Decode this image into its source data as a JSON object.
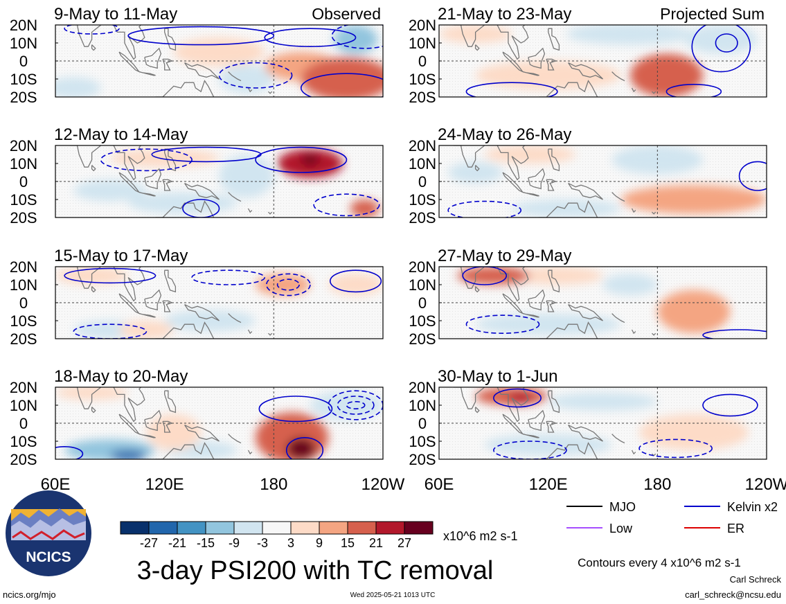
{
  "chart_data": {
    "type": "heatmap",
    "title": "3-day PSI200 with TC removal",
    "variable": "PSI200",
    "units": "x10^6 m2 s-1",
    "column_labels": [
      "Observed",
      "Projected Sum"
    ],
    "x_ticks": [
      "60E",
      "120E",
      "180",
      "120W"
    ],
    "x_range_deg_east": [
      60,
      240
    ],
    "y_ticks": [
      "20N",
      "10N",
      "0",
      "10S",
      "20S"
    ],
    "y_range_deg": [
      -20,
      20
    ],
    "reference_lines": {
      "equator": 0,
      "dateline": 180
    },
    "colorbar": {
      "ticks": [
        "-27",
        "-21",
        "-15",
        "-9",
        "-3",
        "3",
        "9",
        "15",
        "21",
        "27"
      ],
      "colors": [
        "#08306b",
        "#2166ac",
        "#4393c3",
        "#92c5de",
        "#d1e5f0",
        "#f7f7f7",
        "#fddbc7",
        "#f4a582",
        "#d6604d",
        "#b2182b",
        "#67001f"
      ]
    },
    "contour_interval": "Contours every 4 x10^6 m2 s-1",
    "contour_series": [
      {
        "name": "MJO",
        "color": "#000000"
      },
      {
        "name": "Kelvin x2",
        "color": "#0000cc"
      },
      {
        "name": "Low",
        "color": "#a64dff"
      },
      {
        "name": "ER",
        "color": "#dd0000"
      }
    ],
    "panels": [
      {
        "period": "9-May to 11-May",
        "column": "Observed",
        "anomalies": [
          {
            "lon": 220,
            "lat": -10,
            "value": 18,
            "rlon": 25,
            "rlat": 12
          },
          {
            "lon": 195,
            "lat": -3,
            "value": 9,
            "rlon": 20,
            "rlat": 8
          },
          {
            "lon": 150,
            "lat": 5,
            "value": 7,
            "rlon": 25,
            "rlat": 8
          },
          {
            "lon": 225,
            "lat": 12,
            "value": -10,
            "rlon": 12,
            "rlat": 8
          },
          {
            "lon": 165,
            "lat": -10,
            "value": -7,
            "rlon": 15,
            "rlat": 8
          },
          {
            "lon": 70,
            "lat": -15,
            "value": -5,
            "rlon": 15,
            "rlat": 6
          }
        ],
        "contours": [
          {
            "lon": 140,
            "lat": 14,
            "rlon": 40,
            "rlat": 5,
            "dashed": false,
            "series": "Kelvin x2"
          },
          {
            "lon": 200,
            "lat": 13,
            "rlon": 25,
            "rlat": 5,
            "dashed": false,
            "series": "Kelvin x2"
          },
          {
            "lon": 220,
            "lat": -15,
            "rlon": 25,
            "rlat": 8,
            "dashed": false,
            "series": "Kelvin x2"
          },
          {
            "lon": 230,
            "lat": 14,
            "rlon": 18,
            "rlat": 7,
            "dashed": true,
            "series": "Kelvin x2"
          },
          {
            "lon": 170,
            "lat": -8,
            "rlon": 20,
            "rlat": 7,
            "dashed": true,
            "series": "Kelvin x2"
          },
          {
            "lon": 80,
            "lat": 18,
            "rlon": 15,
            "rlat": 3,
            "dashed": true,
            "series": "Kelvin x2"
          }
        ]
      },
      {
        "period": "21-May to 23-May",
        "column": "Projected Sum",
        "anomalies": [
          {
            "lon": 185,
            "lat": -8,
            "value": 15,
            "rlon": 20,
            "rlat": 12
          },
          {
            "lon": 120,
            "lat": -8,
            "value": 7,
            "rlon": 40,
            "rlat": 8
          },
          {
            "lon": 80,
            "lat": 15,
            "value": 6,
            "rlon": 20,
            "rlat": 5
          },
          {
            "lon": 165,
            "lat": 15,
            "value": -6,
            "rlon": 35,
            "rlat": 6
          },
          {
            "lon": 215,
            "lat": 12,
            "value": -5,
            "rlon": 20,
            "rlat": 8
          }
        ],
        "contours": [
          {
            "lon": 215,
            "lat": 8,
            "rlon": 16,
            "rlat": 14,
            "dashed": false,
            "series": "Kelvin x2"
          },
          {
            "lon": 218,
            "lat": 10,
            "rlon": 6,
            "rlat": 5,
            "dashed": false,
            "series": "Kelvin x2"
          },
          {
            "lon": 100,
            "lat": -17,
            "rlon": 25,
            "rlat": 5,
            "dashed": false,
            "series": "Kelvin x2"
          },
          {
            "lon": 200,
            "lat": -17,
            "rlon": 15,
            "rlat": 4,
            "dashed": false,
            "series": "Kelvin x2"
          }
        ]
      },
      {
        "period": "12-May to 14-May",
        "column": "Observed",
        "anomalies": [
          {
            "lon": 200,
            "lat": 10,
            "value": 21,
            "rlon": 18,
            "rlat": 8
          },
          {
            "lon": 200,
            "lat": 12,
            "value": 27,
            "rlon": 5,
            "rlat": 3
          },
          {
            "lon": 230,
            "lat": -15,
            "value": 15,
            "rlon": 8,
            "rlat": 5
          },
          {
            "lon": 120,
            "lat": 13,
            "value": 6,
            "rlon": 30,
            "rlat": 5
          },
          {
            "lon": 165,
            "lat": 3,
            "value": -6,
            "rlon": 15,
            "rlat": 12
          },
          {
            "lon": 130,
            "lat": -12,
            "value": -6,
            "rlon": 30,
            "rlat": 6
          },
          {
            "lon": 90,
            "lat": -5,
            "value": -4,
            "rlon": 20,
            "rlat": 6
          }
        ],
        "contours": [
          {
            "lon": 195,
            "lat": 12,
            "rlon": 25,
            "rlat": 7,
            "dashed": false,
            "series": "Kelvin x2"
          },
          {
            "lon": 143,
            "lat": 15,
            "rlon": 30,
            "rlat": 4,
            "dashed": false,
            "series": "Kelvin x2"
          },
          {
            "lon": 140,
            "lat": -15,
            "rlon": 10,
            "rlat": 5,
            "dashed": false,
            "series": "Kelvin x2"
          },
          {
            "lon": 220,
            "lat": -13,
            "rlon": 18,
            "rlat": 6,
            "dashed": true,
            "series": "Kelvin x2"
          },
          {
            "lon": 110,
            "lat": 12,
            "rlon": 25,
            "rlat": 6,
            "dashed": true,
            "series": "Kelvin x2"
          }
        ]
      },
      {
        "period": "24-May to 26-May",
        "column": "Projected Sum",
        "anomalies": [
          {
            "lon": 180,
            "lat": 12,
            "value": -9,
            "rlon": 25,
            "rlat": 8
          },
          {
            "lon": 200,
            "lat": -10,
            "value": 9,
            "rlon": 40,
            "rlat": 8
          },
          {
            "lon": 190,
            "lat": -10,
            "value": 14,
            "rlon": 8,
            "rlat": 5
          },
          {
            "lon": 110,
            "lat": 15,
            "value": 6,
            "rlon": 25,
            "rlat": 5
          },
          {
            "lon": 80,
            "lat": 5,
            "value": -4,
            "rlon": 15,
            "rlat": 6
          },
          {
            "lon": 130,
            "lat": -15,
            "value": -4,
            "rlon": 30,
            "rlat": 5
          }
        ],
        "contours": [
          {
            "lon": 235,
            "lat": 3,
            "rlon": 10,
            "rlat": 8,
            "dashed": false,
            "series": "Kelvin x2"
          },
          {
            "lon": 85,
            "lat": -16,
            "rlon": 20,
            "rlat": 5,
            "dashed": true,
            "series": "Kelvin x2"
          }
        ]
      },
      {
        "period": "15-May to 17-May",
        "column": "Observed",
        "anomalies": [
          {
            "lon": 185,
            "lat": 10,
            "value": 10,
            "rlon": 15,
            "rlat": 6
          },
          {
            "lon": 145,
            "lat": -10,
            "value": -6,
            "rlon": 25,
            "rlat": 6
          },
          {
            "lon": 110,
            "lat": -15,
            "value": 8,
            "rlon": 15,
            "rlat": 5
          },
          {
            "lon": 80,
            "lat": 15,
            "value": 6,
            "rlon": 20,
            "rlat": 5
          },
          {
            "lon": 225,
            "lat": 10,
            "value": 6,
            "rlon": 15,
            "rlat": 6
          },
          {
            "lon": 90,
            "lat": -15,
            "value": -5,
            "rlon": 20,
            "rlat": 5
          }
        ],
        "contours": [
          {
            "lon": 188,
            "lat": 10,
            "rlon": 12,
            "rlat": 6,
            "dashed": true,
            "series": "Kelvin x2"
          },
          {
            "lon": 188,
            "lat": 10,
            "rlon": 6,
            "rlat": 3,
            "dashed": true,
            "series": "Kelvin x2"
          },
          {
            "lon": 155,
            "lat": 14,
            "rlon": 20,
            "rlat": 4,
            "dashed": true,
            "series": "Kelvin x2"
          },
          {
            "lon": 225,
            "lat": 12,
            "rlon": 14,
            "rlat": 6,
            "dashed": false,
            "series": "Kelvin x2"
          },
          {
            "lon": 90,
            "lat": 15,
            "rlon": 25,
            "rlat": 4,
            "dashed": false,
            "series": "Kelvin x2"
          },
          {
            "lon": 90,
            "lat": -16,
            "rlon": 20,
            "rlat": 4,
            "dashed": true,
            "series": "Kelvin x2"
          }
        ]
      },
      {
        "period": "27-May to 29-May",
        "column": "Projected Sum",
        "anomalies": [
          {
            "lon": 90,
            "lat": 15,
            "value": 15,
            "rlon": 20,
            "rlat": 5
          },
          {
            "lon": 200,
            "lat": -5,
            "value": 12,
            "rlon": 20,
            "rlat": 12
          },
          {
            "lon": 165,
            "lat": 10,
            "value": -7,
            "rlon": 15,
            "rlat": 6
          },
          {
            "lon": 120,
            "lat": -12,
            "value": -5,
            "rlon": 40,
            "rlat": 6
          },
          {
            "lon": 125,
            "lat": 15,
            "value": 5,
            "rlon": 25,
            "rlat": 5
          }
        ],
        "contours": [
          {
            "lon": 85,
            "lat": 15,
            "rlon": 12,
            "rlat": 5,
            "dashed": false,
            "series": "Kelvin x2"
          },
          {
            "lon": 95,
            "lat": -12,
            "rlon": 20,
            "rlat": 5,
            "dashed": true,
            "series": "Kelvin x2"
          },
          {
            "lon": 225,
            "lat": -18,
            "rlon": 20,
            "rlat": 3,
            "dashed": false,
            "series": "Kelvin x2"
          }
        ]
      },
      {
        "period": "18-May to 20-May",
        "column": "Observed",
        "anomalies": [
          {
            "lon": 190,
            "lat": -8,
            "value": 20,
            "rlon": 20,
            "rlat": 14
          },
          {
            "lon": 195,
            "lat": -14,
            "value": 27,
            "rlon": 8,
            "rlat": 6
          },
          {
            "lon": 90,
            "lat": -15,
            "value": -15,
            "rlon": 25,
            "rlat": 6
          },
          {
            "lon": 100,
            "lat": -18,
            "value": -24,
            "rlon": 10,
            "rlat": 3
          },
          {
            "lon": 80,
            "lat": 17,
            "value": 8,
            "rlon": 20,
            "rlat": 4
          },
          {
            "lon": 140,
            "lat": -15,
            "value": -6,
            "rlon": 20,
            "rlat": 5
          },
          {
            "lon": 220,
            "lat": 10,
            "value": -5,
            "rlon": 20,
            "rlat": 8
          },
          {
            "lon": 125,
            "lat": -5,
            "value": 6,
            "rlon": 15,
            "rlat": 10
          }
        ],
        "contours": [
          {
            "lon": 225,
            "lat": 10,
            "rlon": 15,
            "rlat": 8,
            "dashed": true,
            "series": "Kelvin x2"
          },
          {
            "lon": 225,
            "lat": 10,
            "rlon": 10,
            "rlat": 5,
            "dashed": true,
            "series": "Kelvin x2"
          },
          {
            "lon": 225,
            "lat": 10,
            "rlon": 5,
            "rlat": 2,
            "dashed": true,
            "series": "Kelvin x2"
          },
          {
            "lon": 192,
            "lat": 8,
            "rlon": 20,
            "rlat": 7,
            "dashed": false,
            "series": "Kelvin x2"
          },
          {
            "lon": 197,
            "lat": -15,
            "rlon": 10,
            "rlat": 7,
            "dashed": false,
            "series": "Kelvin x2"
          },
          {
            "lon": 65,
            "lat": -17,
            "rlon": 10,
            "rlat": 4,
            "dashed": false,
            "series": "Kelvin x2"
          }
        ]
      },
      {
        "period": "30-May to 1-Jun",
        "column": "Projected Sum",
        "anomalies": [
          {
            "lon": 100,
            "lat": 15,
            "value": 15,
            "rlon": 20,
            "rlat": 5
          },
          {
            "lon": 105,
            "lat": 14,
            "value": 22,
            "rlon": 7,
            "rlat": 3
          },
          {
            "lon": 200,
            "lat": -5,
            "value": 6,
            "rlon": 30,
            "rlat": 10
          },
          {
            "lon": 150,
            "lat": 12,
            "value": -4,
            "rlon": 30,
            "rlat": 5
          },
          {
            "lon": 120,
            "lat": -12,
            "value": -5,
            "rlon": 35,
            "rlat": 6
          }
        ],
        "contours": [
          {
            "lon": 103,
            "lat": 14,
            "rlon": 13,
            "rlat": 5,
            "dashed": false,
            "series": "Kelvin x2"
          },
          {
            "lon": 220,
            "lat": 10,
            "rlon": 15,
            "rlat": 6,
            "dashed": false,
            "series": "Kelvin x2"
          },
          {
            "lon": 110,
            "lat": -15,
            "rlon": 20,
            "rlat": 5,
            "dashed": true,
            "series": "Kelvin x2"
          },
          {
            "lon": 190,
            "lat": -14,
            "rlon": 20,
            "rlat": 5,
            "dashed": true,
            "series": "Kelvin x2"
          }
        ]
      }
    ]
  },
  "footer": {
    "logo_text": "NCICS",
    "url": "ncics.org/mjo",
    "timestamp": "Wed 2025-05-21 1013 UTC",
    "author": "Carl Schreck",
    "email": "carl_schreck@ncsu.edu"
  }
}
